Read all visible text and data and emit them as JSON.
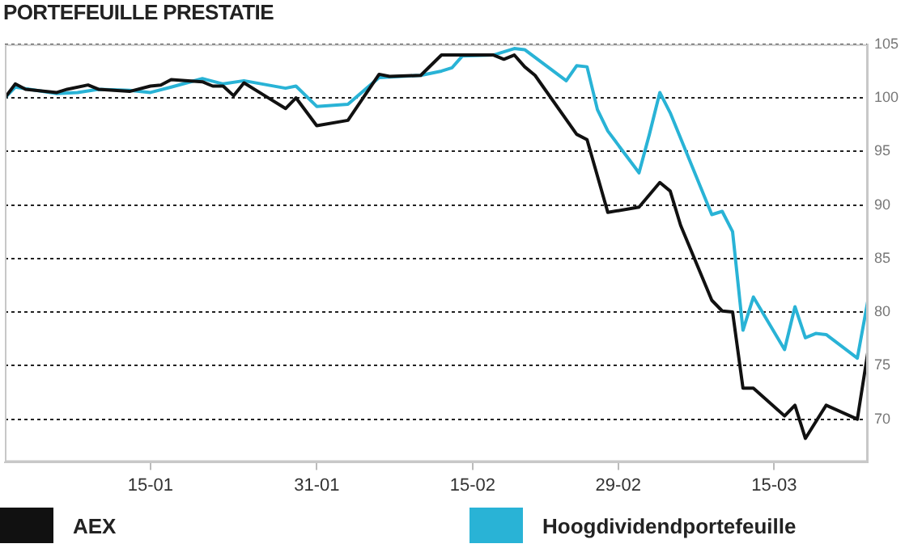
{
  "chart_data": {
    "type": "line",
    "title": "PORTEFEUILLE PRESTATIE",
    "xlim": [
      "--01-01",
      "--03-24"
    ],
    "xticks": [
      {
        "value": "--01-15",
        "label": "15-01"
      },
      {
        "value": "--01-31",
        "label": "31-01"
      },
      {
        "value": "--02-15",
        "label": "15-02"
      },
      {
        "value": "--02-29",
        "label": "29-02"
      },
      {
        "value": "--03-15",
        "label": "15-03"
      }
    ],
    "ylim": [
      66,
      105
    ],
    "yticks": [
      70,
      75,
      80,
      85,
      90,
      95,
      100,
      105
    ],
    "grid": "y",
    "legend": "bottom",
    "marker": "none",
    "line_style": "solid",
    "series": [
      {
        "name": "AEX",
        "color": "#111111",
        "x": [
          "--01-01",
          "--01-02",
          "--01-03",
          "--01-06",
          "--01-07",
          "--01-09",
          "--01-10",
          "--01-13",
          "--01-15",
          "--01-16",
          "--01-17",
          "--01-20",
          "--01-21",
          "--01-22",
          "--01-23",
          "--01-24",
          "--01-26",
          "--01-28",
          "--01-29",
          "--01-31",
          "--02-03",
          "--02-06",
          "--02-07",
          "--02-10",
          "--02-12",
          "--02-17",
          "--02-18",
          "--02-19",
          "--02-20",
          "--02-21",
          "--02-25",
          "--02-26",
          "--02-28",
          "--03-02",
          "--03-04",
          "--03-05",
          "--03-06",
          "--03-09",
          "--03-10",
          "--03-11",
          "--03-12",
          "--03-13",
          "--03-16",
          "--03-17",
          "--03-18",
          "--03-20",
          "--03-23",
          "--03-24"
        ],
        "values": [
          100.0,
          101.3,
          100.8,
          100.5,
          100.8,
          101.2,
          100.8,
          100.6,
          101.1,
          101.2,
          101.7,
          101.5,
          101.1,
          101.1,
          100.2,
          101.4,
          100.2,
          99.0,
          100.0,
          97.4,
          97.9,
          102.2,
          102.0,
          102.1,
          104.0,
          104.0,
          103.6,
          104.0,
          102.9,
          102.1,
          96.6,
          96.1,
          89.3,
          89.8,
          92.1,
          91.3,
          88.1,
          81.1,
          80.1,
          80.0,
          72.9,
          72.9,
          70.3,
          71.3,
          68.2,
          71.3,
          70.0,
          76.2
        ]
      },
      {
        "name": "Hoogdividendportefeuille",
        "color": "#29b3d6",
        "x": [
          "--01-01",
          "--01-02",
          "--01-06",
          "--01-08",
          "--01-10",
          "--01-13",
          "--01-15",
          "--01-17",
          "--01-20",
          "--01-22",
          "--01-24",
          "--01-28",
          "--01-29",
          "--01-31",
          "--02-03",
          "--02-06",
          "--02-10",
          "--02-12",
          "--02-13",
          "--02-14",
          "--02-17",
          "--02-19",
          "--02-20",
          "--02-24",
          "--02-25",
          "--02-26",
          "--02-27",
          "--02-28",
          "--03-02",
          "--03-03",
          "--03-04",
          "--03-05",
          "--03-09",
          "--03-10",
          "--03-11",
          "--03-12",
          "--03-13",
          "--03-16",
          "--03-17",
          "--03-18",
          "--03-19",
          "--03-20",
          "--03-23",
          "--03-24"
        ],
        "values": [
          100.0,
          101.0,
          100.4,
          100.5,
          100.8,
          100.7,
          100.5,
          101.0,
          101.8,
          101.3,
          101.6,
          100.9,
          101.1,
          99.2,
          99.4,
          101.9,
          102.1,
          102.5,
          102.8,
          103.9,
          104.0,
          104.6,
          104.5,
          101.6,
          103.0,
          102.9,
          98.9,
          96.9,
          93.0,
          96.6,
          100.5,
          98.6,
          89.1,
          89.4,
          87.5,
          78.3,
          81.4,
          76.5,
          80.5,
          77.6,
          78.0,
          77.9,
          75.7,
          81.0
        ]
      }
    ]
  }
}
